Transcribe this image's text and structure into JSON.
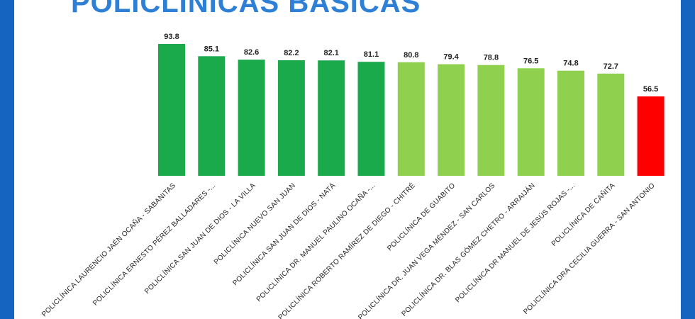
{
  "chart_data": {
    "type": "bar",
    "title": "POLICLÍNICAS BÁSICAS",
    "categories": [
      "POLICLÍNICA LAURENCIO JAÉN OCAÑA - SABANITAS",
      "POLICLÍNICA ERNESTO PÉREZ BALLADARES -...",
      "POLICLÍNICA SAN JUAN DE DIOS - LA VILLA",
      "POLICLÍNICA NUEVO SAN JUAN",
      "POLICLÍNICA SAN JUAN DE DIOS - NATÁ",
      "POLICLÍNICA DR. MANUEL PAULINO OCAÑA -...",
      "POLICLÍNICA ROBERTO RAMÍREZ DE DIEGO - CHITRÉ",
      "POLICLÍNICA DE GUABITO",
      "POLICLÍNICA DR. JUAN VEGA MÉNDEZ - SAN CARLOS",
      "POLICLÍNICA DR. BLAS GÓMEZ CHETRO - ARRAIJÁN",
      "POLICLÍNICA DR MANUEL DE JESÚS ROJAS -...",
      "POLICLÍNICA DE CAÑITA",
      "POLICLÍNICA DRA CECILIA GUERRA - SAN ANTONIO"
    ],
    "values": [
      93.8,
      85.1,
      82.6,
      82.2,
      82.1,
      81.1,
      80.8,
      79.4,
      78.8,
      76.5,
      74.8,
      72.7,
      56.5
    ],
    "value_labels": [
      "93.8",
      "85.1",
      "82.6",
      "82.2",
      "82.1",
      "81.1",
      "80.8",
      "79.4",
      "78.8",
      "76.5",
      "74.8",
      "72.7",
      "56.5"
    ],
    "bar_colors": [
      "#1aaa4c",
      "#1aaa4c",
      "#1aaa4c",
      "#1aaa4c",
      "#1aaa4c",
      "#1aaa4c",
      "#8fd14f",
      "#8fd14f",
      "#8fd14f",
      "#8fd14f",
      "#8fd14f",
      "#8fd14f",
      "#ff0000"
    ],
    "colors": {
      "frame": "#1565c0",
      "title": "#2e7fd6",
      "high": "#1aaa4c",
      "medium": "#8fd14f",
      "low": "#ff0000"
    },
    "ylim": [
      0,
      95
    ],
    "grid": false,
    "legend": "none"
  }
}
